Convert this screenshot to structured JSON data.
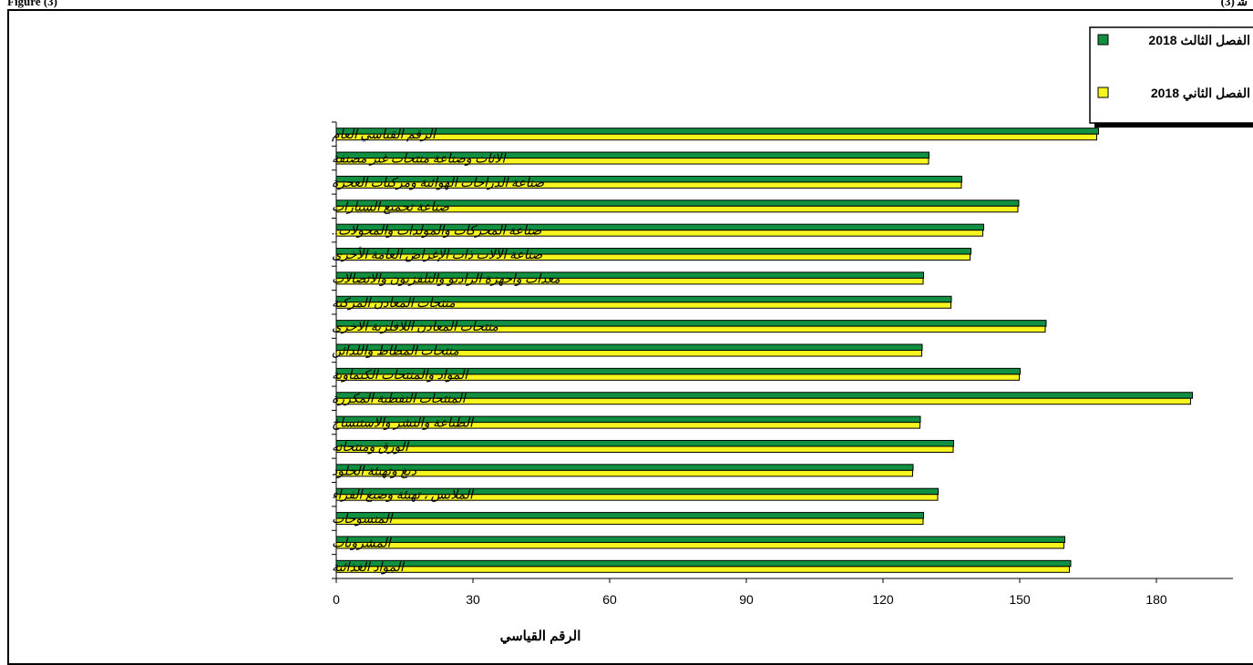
{
  "header": {
    "left": "Figure (3)",
    "right": "(3) ﺷ"
  },
  "colors": {
    "series_q3": "#109040",
    "series_q2": "#f6f61e",
    "outline": "#000000"
  },
  "chart_data": {
    "type": "bar",
    "orientation": "horizontal",
    "title": "",
    "xlabel": "الرقم القياسي",
    "ylabel": "",
    "xlim": [
      0,
      180
    ],
    "xticks": [
      0,
      30,
      60,
      90,
      120,
      150,
      180
    ],
    "legend_position": "top-right",
    "grid": false,
    "categories": [
      "الرقم القياسي العام",
      "الاثاث وصناعة منتجات غير مصنفة",
      "صناعة الدراجات الهوائية ومركبات العجزة",
      "صناعة  تجميع السيارات",
      "صناعة المحركات والمولدات والمحولات..",
      "صناعة الآلات ذات الإغراض العامة الأخرى",
      "معدات واجهزة الراديو والتلفزيون والاتصالات",
      "منتجات المعادن المركبة",
      "منتجات المعادن اللافلزية الاخرى",
      "منتجات المطاط واللدائن",
      "المواد والمنتجات الكيماوية",
      "المنتجات النفطية المكررة",
      "الطباعة والنشر والاستنساخ",
      "الورق ومنتجاته",
      "دبغ وتهيئة الجلود",
      "الملابس ، تهيئة وصبغ الفراء",
      "المنسوجات",
      "المشروبات",
      "المواد الغذائية"
    ],
    "series": [
      {
        "name": "الفصل الثالث 2018",
        "color": "#109040",
        "values": [
          167.3,
          130.1,
          137.3,
          149.8,
          142.1,
          139.3,
          128.9,
          135.0,
          155.8,
          128.6,
          150.1,
          187.9,
          128.2,
          135.5,
          126.6,
          132.1,
          128.9,
          159.9,
          161.2
        ]
      },
      {
        "name": "الفصل الثاني 2018",
        "color": "#f6f61e",
        "values": [
          166.9,
          130.0,
          137.2,
          149.6,
          141.9,
          139.1,
          128.8,
          134.9,
          155.6,
          128.5,
          149.9,
          187.5,
          128.1,
          135.4,
          126.5,
          132.0,
          128.8,
          159.7,
          160.9
        ]
      }
    ]
  }
}
